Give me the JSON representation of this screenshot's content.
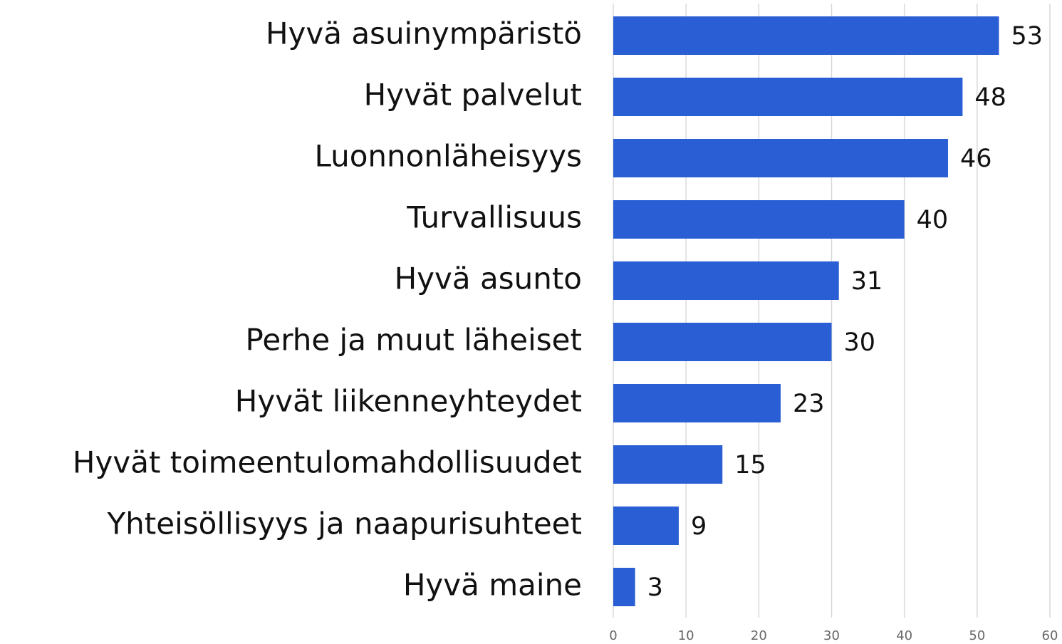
{
  "chart_data": {
    "type": "bar",
    "orientation": "horizontal",
    "categories": [
      "Hyvä asuinympäristö",
      "Hyvät palvelut",
      "Luonnonläheisyys",
      "Turvallisuus",
      "Hyvä asunto",
      "Perhe ja muut läheiset",
      "Hyvät liikenneyhteydet",
      "Hyvät toimeentulomahdollisuudet",
      "Yhteisöllisyys ja naapurisuhteet",
      "Hyvä maine"
    ],
    "values": [
      53,
      48,
      46,
      40,
      31,
      30,
      23,
      15,
      9,
      3
    ],
    "color": "#2a5ed4",
    "xlim": [
      0,
      60
    ],
    "xticks": [
      0,
      10,
      20,
      30,
      40,
      50,
      60
    ],
    "grid": true
  }
}
